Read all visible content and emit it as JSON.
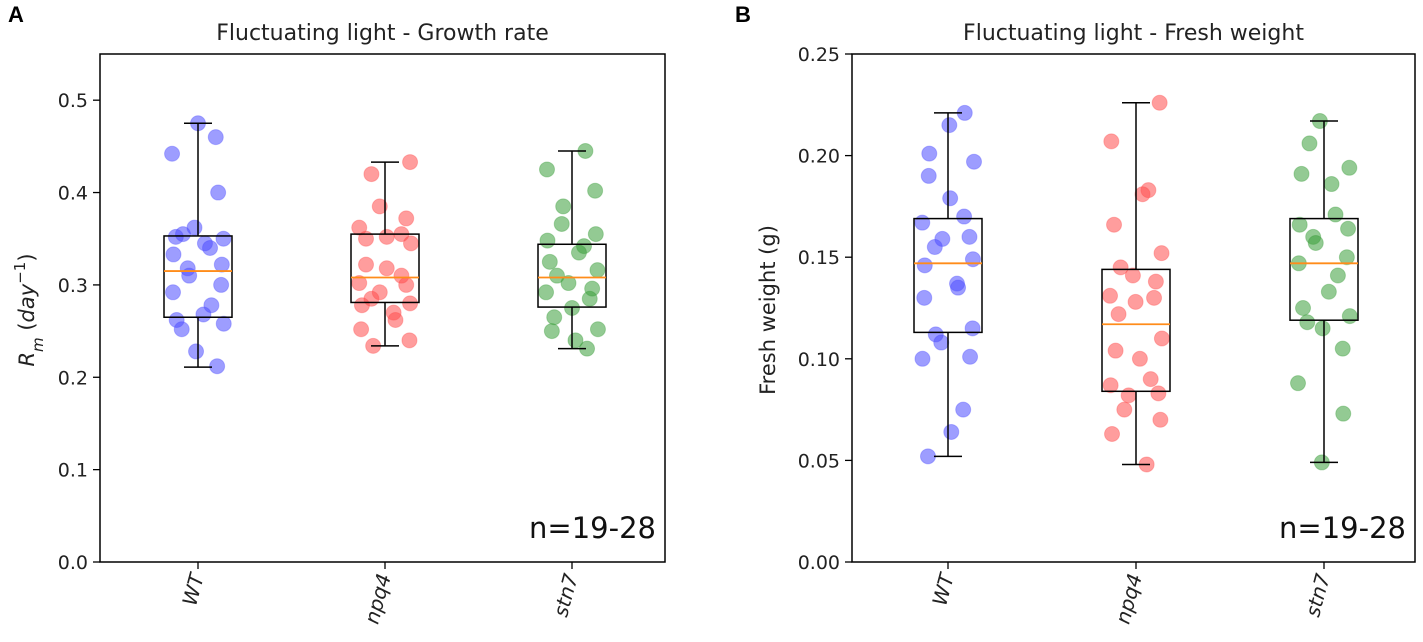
{
  "chart_data": [
    {
      "type": "box",
      "panel_letter": "A",
      "title": "Fluctuating light - Growth rate",
      "ylabel_main": "R",
      "ylabel_sub": "m",
      "ylabel_unit_open": " (",
      "ylabel_unit_base": "day",
      "ylabel_unit_exp": "−1",
      "ylabel_unit_close": ")",
      "ylim": [
        0,
        0.55
      ],
      "yticks": [
        0.0,
        0.1,
        0.2,
        0.3,
        0.4,
        0.5
      ],
      "ytick_labels": [
        "0.0",
        "0.1",
        "0.2",
        "0.3",
        "0.4",
        "0.5"
      ],
      "categories": [
        "WT",
        "npq4",
        "stn7"
      ],
      "colors": [
        "#4d4dff",
        "#ff4d4d",
        "#3a9e3a"
      ],
      "annotation": "n=19-28",
      "boxes": [
        {
          "name": "WT",
          "whisker_low": 0.211,
          "q1": 0.265,
          "median": 0.315,
          "q3": 0.353,
          "whisker_high": 0.475
        },
        {
          "name": "npq4",
          "whisker_low": 0.234,
          "q1": 0.281,
          "median": 0.308,
          "q3": 0.355,
          "whisker_high": 0.433
        },
        {
          "name": "stn7",
          "whisker_low": 0.231,
          "q1": 0.276,
          "median": 0.308,
          "q3": 0.344,
          "whisker_high": 0.445
        }
      ],
      "points": [
        [
          0.475,
          0.46,
          0.442,
          0.4,
          0.362,
          0.355,
          0.35,
          0.352,
          0.345,
          0.34,
          0.333,
          0.322,
          0.318,
          0.31,
          0.3,
          0.292,
          0.278,
          0.268,
          0.262,
          0.258,
          0.252,
          0.228,
          0.212
        ],
        [
          0.433,
          0.42,
          0.385,
          0.372,
          0.362,
          0.355,
          0.352,
          0.35,
          0.345,
          0.322,
          0.318,
          0.31,
          0.302,
          0.3,
          0.292,
          0.285,
          0.28,
          0.278,
          0.27,
          0.262,
          0.252,
          0.24,
          0.234
        ],
        [
          0.445,
          0.425,
          0.402,
          0.385,
          0.366,
          0.355,
          0.348,
          0.342,
          0.335,
          0.325,
          0.316,
          0.31,
          0.302,
          0.296,
          0.292,
          0.285,
          0.275,
          0.265,
          0.252,
          0.25,
          0.24,
          0.231
        ]
      ]
    },
    {
      "type": "box",
      "panel_letter": "B",
      "title": "Fluctuating light - Fresh weight",
      "ylabel": "Fresh weight (g)",
      "ylim": [
        0,
        0.25
      ],
      "yticks": [
        0.0,
        0.05,
        0.1,
        0.15,
        0.2,
        0.25
      ],
      "ytick_labels": [
        "0.00",
        "0.05",
        "0.10",
        "0.15",
        "0.20",
        "0.25"
      ],
      "categories": [
        "WT",
        "npq4",
        "stn7"
      ],
      "colors": [
        "#4d4dff",
        "#ff4d4d",
        "#3a9e3a"
      ],
      "annotation": "n=19-28",
      "boxes": [
        {
          "name": "WT",
          "whisker_low": 0.052,
          "q1": 0.113,
          "median": 0.147,
          "q3": 0.169,
          "whisker_high": 0.221
        },
        {
          "name": "npq4",
          "whisker_low": 0.048,
          "q1": 0.084,
          "median": 0.117,
          "q3": 0.144,
          "whisker_high": 0.226
        },
        {
          "name": "stn7",
          "whisker_low": 0.049,
          "q1": 0.119,
          "median": 0.147,
          "q3": 0.169,
          "whisker_high": 0.217
        }
      ],
      "points": [
        [
          0.221,
          0.215,
          0.201,
          0.197,
          0.19,
          0.179,
          0.17,
          0.167,
          0.16,
          0.159,
          0.155,
          0.149,
          0.146,
          0.137,
          0.135,
          0.13,
          0.115,
          0.112,
          0.108,
          0.101,
          0.1,
          0.075,
          0.064,
          0.052
        ],
        [
          0.226,
          0.207,
          0.183,
          0.181,
          0.166,
          0.152,
          0.145,
          0.141,
          0.138,
          0.131,
          0.13,
          0.128,
          0.122,
          0.11,
          0.104,
          0.1,
          0.09,
          0.087,
          0.083,
          0.082,
          0.075,
          0.07,
          0.063,
          0.048
        ],
        [
          0.217,
          0.206,
          0.194,
          0.191,
          0.186,
          0.171,
          0.166,
          0.164,
          0.16,
          0.157,
          0.15,
          0.147,
          0.141,
          0.133,
          0.125,
          0.121,
          0.118,
          0.115,
          0.105,
          0.088,
          0.073,
          0.049
        ]
      ]
    }
  ]
}
